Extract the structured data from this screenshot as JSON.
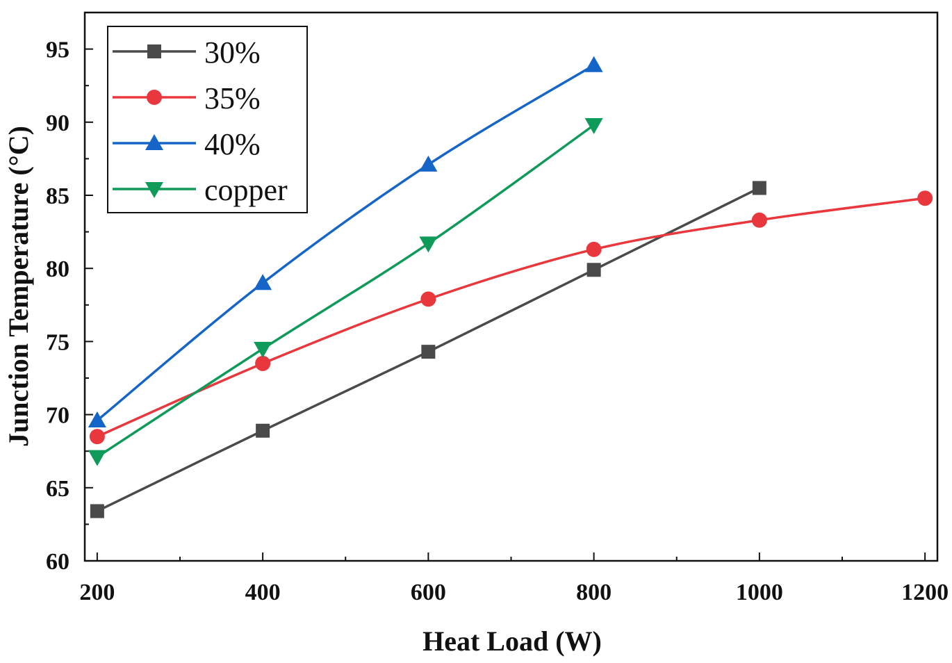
{
  "chart_data": {
    "type": "line",
    "title": "",
    "xlabel": "Heat Load (W)",
    "ylabel": "Junction Temperature (°C)",
    "xlim": [
      185,
      1215
    ],
    "ylim": [
      60,
      97.5
    ],
    "xticks": [
      200,
      400,
      600,
      800,
      1000,
      1200
    ],
    "yticks": [
      60,
      65,
      70,
      75,
      80,
      85,
      90,
      95
    ],
    "legend_position": "top-left",
    "series": [
      {
        "name": "30%",
        "color": "#4a4a4a",
        "marker": "square",
        "x": [
          200,
          400,
          600,
          800,
          1000
        ],
        "y": [
          63.4,
          68.9,
          74.3,
          79.9,
          85.5
        ]
      },
      {
        "name": "35%",
        "color": "#e8383d",
        "marker": "circle",
        "x": [
          200,
          400,
          600,
          800,
          1000,
          1200
        ],
        "y": [
          68.5,
          73.5,
          77.9,
          81.3,
          83.3,
          84.8
        ]
      },
      {
        "name": "40%",
        "color": "#1565c8",
        "marker": "triangle-up",
        "x": [
          200,
          400,
          600,
          800
        ],
        "y": [
          69.6,
          79.0,
          87.1,
          93.9
        ]
      },
      {
        "name": "copper",
        "color": "#0e9a59",
        "marker": "triangle-down",
        "x": [
          200,
          400,
          600,
          800
        ],
        "y": [
          67.1,
          74.5,
          81.7,
          89.8
        ]
      }
    ]
  }
}
